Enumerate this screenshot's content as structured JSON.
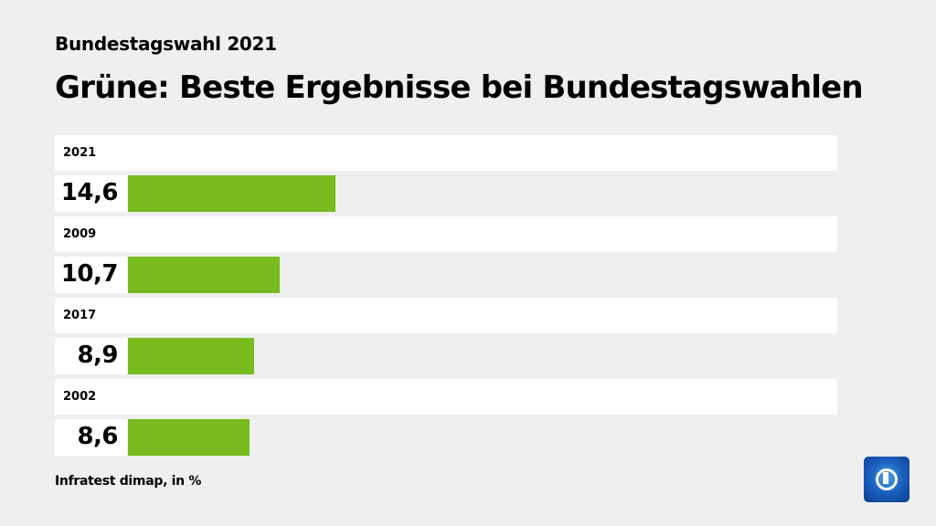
{
  "header": {
    "subtitle": "Bundestagswahl 2021",
    "title": "Grüne: Beste Ergebnisse bei Bundestagswahlen"
  },
  "chart_data": {
    "type": "bar",
    "orientation": "horizontal",
    "categories": [
      "2021",
      "2009",
      "2017",
      "2002"
    ],
    "values": [
      14.6,
      10.7,
      8.9,
      8.6
    ],
    "value_labels": [
      "14,6",
      "10,7",
      "8,9",
      "8,6"
    ],
    "xlim": [
      0,
      50
    ],
    "bar_color": "#78bb1f",
    "grid": false
  },
  "footer": {
    "source": "Infratest dimap, in %"
  },
  "logo": {
    "name": "tagesschau-logo"
  }
}
